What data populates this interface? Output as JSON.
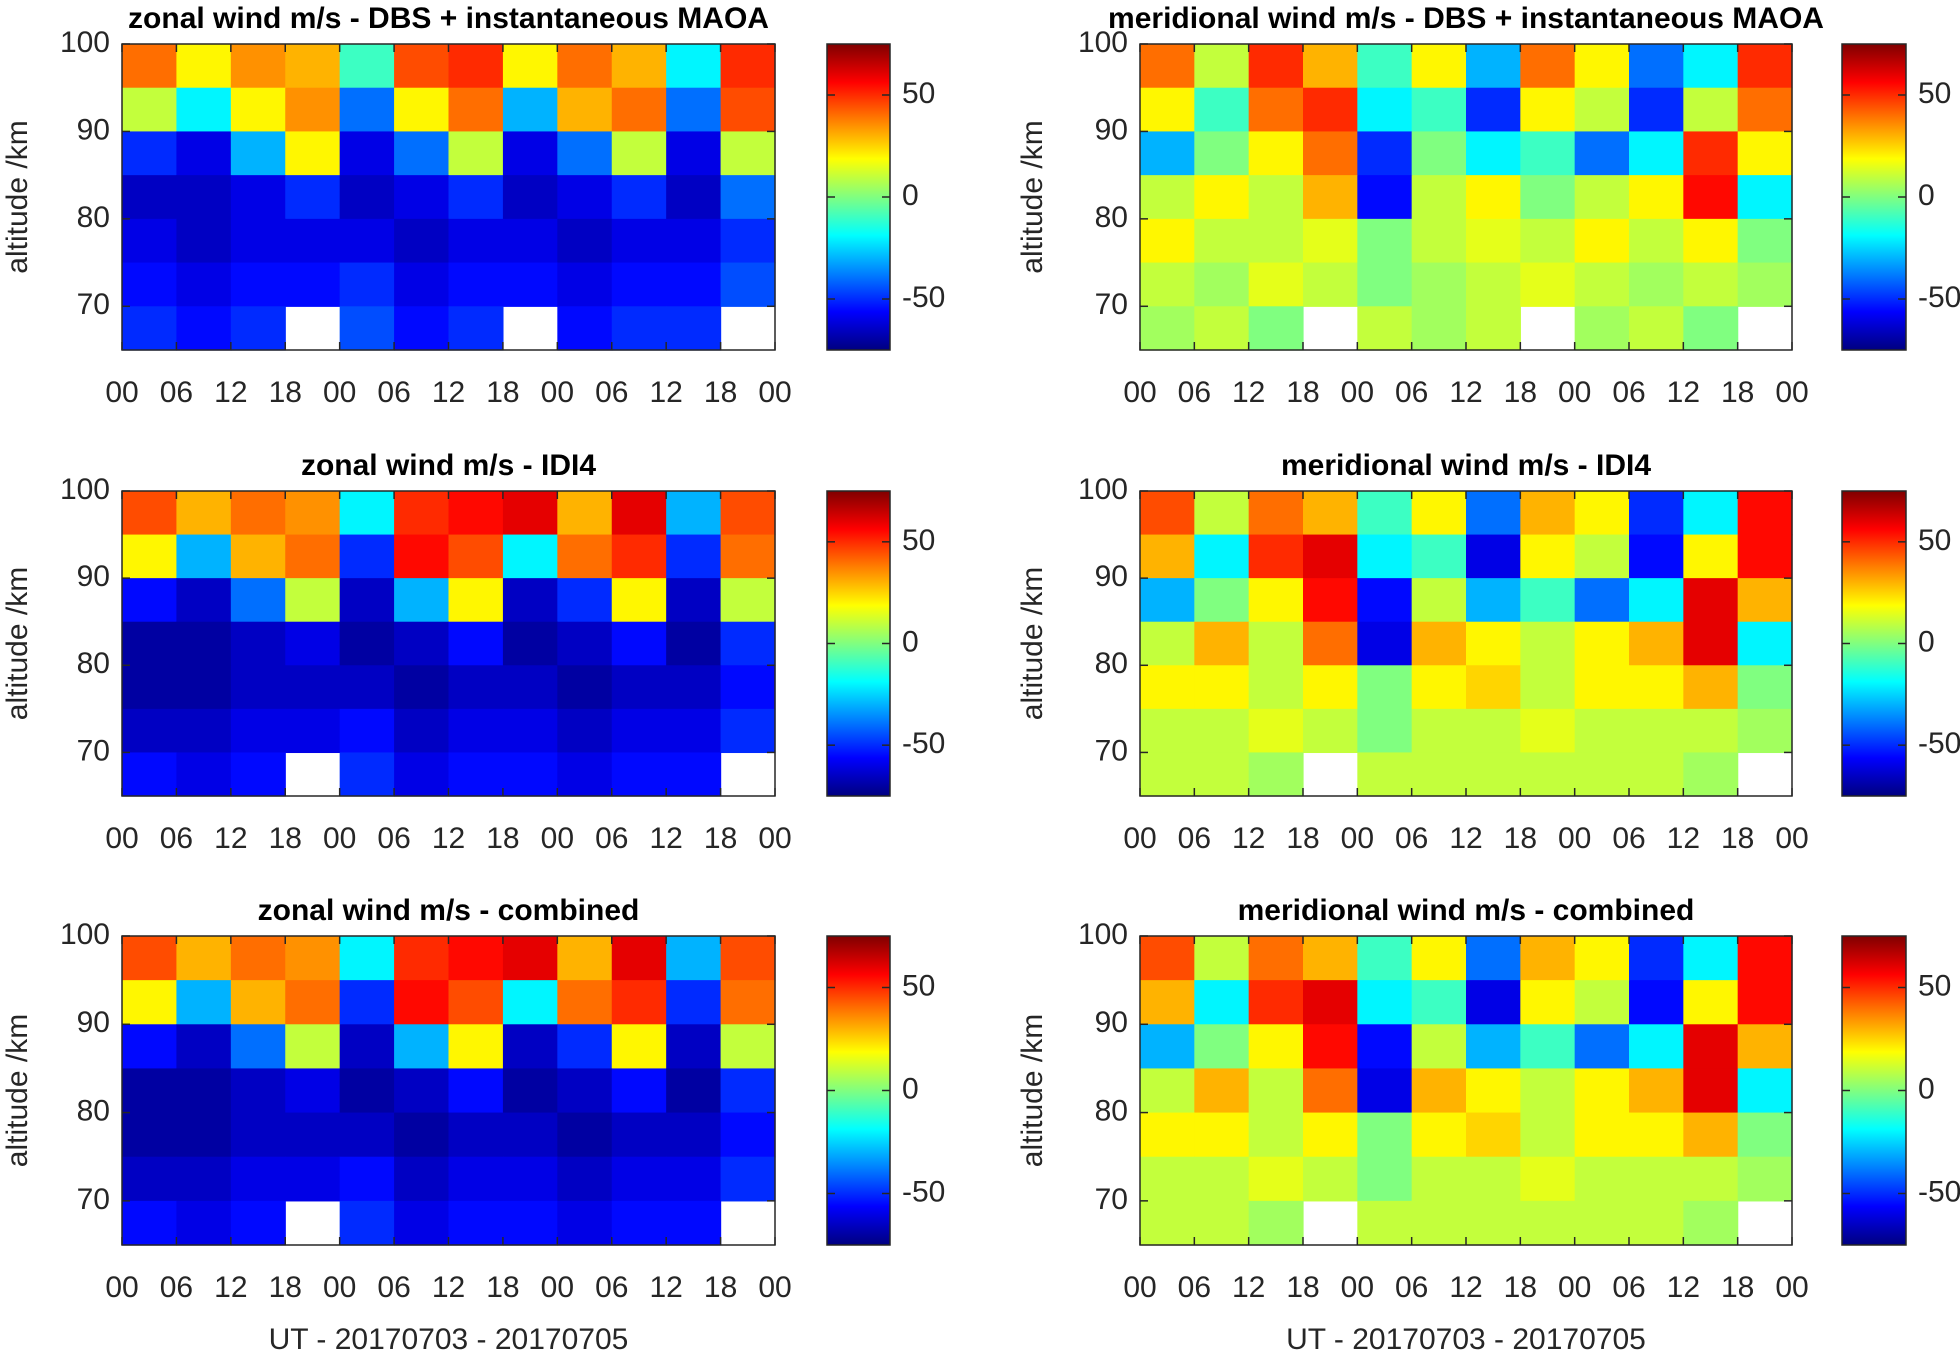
{
  "chart_data": [
    {
      "type": "heatmap",
      "title": "zonal wind m/s - DBS + instantaneous MAOA",
      "ylabel": "altitude /km",
      "xlim": [
        0,
        72
      ],
      "xticks": [
        {
          "value": 0,
          "label": "00"
        },
        {
          "value": 6,
          "label": "06"
        },
        12,
        18,
        {
          "value": 24,
          "label": "00"
        },
        {
          "value": 30,
          "label": "06"
        },
        {
          "value": 36,
          "label": "12"
        },
        {
          "value": 42,
          "label": "18"
        },
        {
          "value": 48,
          "label": "00"
        },
        {
          "value": 54,
          "label": "06"
        },
        {
          "value": 60,
          "label": "12"
        },
        {
          "value": 66,
          "label": "18"
        },
        {
          "value": 72,
          "label": "00"
        }
      ],
      "ylim": [
        65,
        100
      ],
      "yticks": [
        70,
        80,
        90,
        100
      ],
      "clim": [
        -75,
        75
      ],
      "cticks": [
        -50,
        0,
        50
      ],
      "colormap": "jet",
      "z": [
        [
          40,
          20,
          35,
          30,
          -10,
          45,
          50,
          20,
          40,
          30,
          -20,
          50
        ],
        [
          10,
          -20,
          20,
          35,
          -40,
          20,
          40,
          -30,
          30,
          40,
          -40,
          45
        ],
        [
          -50,
          -60,
          -30,
          20,
          -60,
          -40,
          10,
          -60,
          -40,
          10,
          -60,
          10
        ],
        [
          -65,
          -65,
          -60,
          -50,
          -65,
          -60,
          -50,
          -65,
          -60,
          -50,
          -65,
          -40
        ],
        [
          -60,
          -65,
          -60,
          -60,
          -60,
          -65,
          -60,
          -60,
          -65,
          -60,
          -60,
          -50
        ],
        [
          -55,
          -60,
          -55,
          -55,
          -50,
          -60,
          -55,
          -55,
          -60,
          -55,
          -55,
          -45
        ],
        [
          -50,
          -55,
          -50,
          null,
          -45,
          -55,
          -50,
          null,
          -55,
          -50,
          -50,
          null
        ]
      ]
    },
    {
      "type": "heatmap",
      "title": "meridional wind m/s - DBS + instantaneous MAOA",
      "ylabel": "altitude /km",
      "xlim": [
        0,
        72
      ],
      "xticks": [
        {
          "value": 0,
          "label": "00"
        },
        {
          "value": 6,
          "label": "06"
        },
        12,
        18,
        {
          "value": 24,
          "label": "00"
        },
        {
          "value": 30,
          "label": "06"
        },
        {
          "value": 36,
          "label": "12"
        },
        {
          "value": 42,
          "label": "18"
        },
        {
          "value": 48,
          "label": "00"
        },
        {
          "value": 54,
          "label": "06"
        },
        {
          "value": 60,
          "label": "12"
        },
        {
          "value": 66,
          "label": "18"
        },
        {
          "value": 72,
          "label": "00"
        }
      ],
      "ylim": [
        65,
        100
      ],
      "yticks": [
        70,
        80,
        90,
        100
      ],
      "clim": [
        -75,
        75
      ],
      "cticks": [
        -50,
        0,
        50
      ],
      "colormap": "jet",
      "z": [
        [
          40,
          10,
          50,
          30,
          -10,
          20,
          -30,
          40,
          20,
          -40,
          -20,
          50
        ],
        [
          20,
          -10,
          40,
          50,
          -20,
          -10,
          -50,
          20,
          10,
          -50,
          10,
          40
        ],
        [
          -30,
          0,
          20,
          40,
          -50,
          0,
          -20,
          -10,
          -40,
          -20,
          50,
          20
        ],
        [
          10,
          20,
          10,
          30,
          -55,
          10,
          20,
          0,
          10,
          20,
          55,
          -20
        ],
        [
          20,
          10,
          10,
          15,
          0,
          10,
          15,
          10,
          20,
          10,
          20,
          0
        ],
        [
          10,
          5,
          15,
          10,
          0,
          5,
          10,
          15,
          10,
          5,
          10,
          5
        ],
        [
          5,
          10,
          0,
          null,
          10,
          5,
          10,
          null,
          5,
          10,
          0,
          null
        ]
      ]
    },
    {
      "type": "heatmap",
      "title": "zonal wind m/s - IDI4",
      "ylabel": "altitude /km",
      "xlim": [
        0,
        72
      ],
      "xticks": [
        {
          "value": 0,
          "label": "00"
        },
        {
          "value": 6,
          "label": "06"
        },
        12,
        18,
        {
          "value": 24,
          "label": "00"
        },
        {
          "value": 30,
          "label": "06"
        },
        {
          "value": 36,
          "label": "12"
        },
        {
          "value": 42,
          "label": "18"
        },
        {
          "value": 48,
          "label": "00"
        },
        {
          "value": 54,
          "label": "06"
        },
        {
          "value": 60,
          "label": "12"
        },
        {
          "value": 66,
          "label": "18"
        },
        {
          "value": 72,
          "label": "00"
        }
      ],
      "ylim": [
        65,
        100
      ],
      "yticks": [
        70,
        80,
        90,
        100
      ],
      "clim": [
        -75,
        75
      ],
      "cticks": [
        -50,
        0,
        50
      ],
      "colormap": "jet",
      "z": [
        [
          45,
          30,
          40,
          35,
          -20,
          50,
          55,
          60,
          30,
          60,
          -30,
          45
        ],
        [
          20,
          -30,
          30,
          40,
          -50,
          55,
          45,
          -20,
          40,
          50,
          -50,
          40
        ],
        [
          -55,
          -65,
          -40,
          10,
          -65,
          -30,
          20,
          -65,
          -50,
          20,
          -65,
          10
        ],
        [
          -70,
          -70,
          -65,
          -60,
          -70,
          -65,
          -55,
          -70,
          -65,
          -55,
          -70,
          -50
        ],
        [
          -70,
          -70,
          -65,
          -65,
          -65,
          -70,
          -65,
          -65,
          -70,
          -65,
          -65,
          -55
        ],
        [
          -65,
          -65,
          -60,
          -60,
          -55,
          -65,
          -60,
          -60,
          -65,
          -60,
          -60,
          -50
        ],
        [
          -55,
          -60,
          -55,
          null,
          -50,
          -60,
          -55,
          -55,
          -60,
          -55,
          -55,
          null
        ]
      ]
    },
    {
      "type": "heatmap",
      "title": "meridional wind m/s - IDI4",
      "ylabel": "altitude /km",
      "xlim": [
        0,
        72
      ],
      "xticks": [
        {
          "value": 0,
          "label": "00"
        },
        {
          "value": 6,
          "label": "06"
        },
        12,
        18,
        {
          "value": 24,
          "label": "00"
        },
        {
          "value": 30,
          "label": "06"
        },
        {
          "value": 36,
          "label": "12"
        },
        {
          "value": 42,
          "label": "18"
        },
        {
          "value": 48,
          "label": "00"
        },
        {
          "value": 54,
          "label": "06"
        },
        {
          "value": 60,
          "label": "12"
        },
        {
          "value": 66,
          "label": "18"
        },
        {
          "value": 72,
          "label": "00"
        }
      ],
      "ylim": [
        65,
        100
      ],
      "yticks": [
        70,
        80,
        90,
        100
      ],
      "clim": [
        -75,
        75
      ],
      "cticks": [
        -50,
        0,
        50
      ],
      "colormap": "jet",
      "z": [
        [
          45,
          10,
          40,
          30,
          -10,
          20,
          -40,
          30,
          20,
          -50,
          -20,
          55
        ],
        [
          30,
          -20,
          50,
          60,
          -20,
          -10,
          -60,
          20,
          10,
          -55,
          20,
          55
        ],
        [
          -30,
          0,
          20,
          55,
          -55,
          10,
          -30,
          -10,
          -40,
          -20,
          60,
          30
        ],
        [
          10,
          30,
          10,
          40,
          -60,
          30,
          20,
          10,
          20,
          30,
          60,
          -20
        ],
        [
          20,
          20,
          10,
          20,
          0,
          20,
          25,
          10,
          20,
          20,
          30,
          0
        ],
        [
          10,
          10,
          15,
          10,
          0,
          10,
          10,
          15,
          10,
          10,
          10,
          5
        ],
        [
          10,
          10,
          5,
          null,
          10,
          10,
          10,
          10,
          10,
          10,
          5,
          null
        ]
      ]
    },
    {
      "type": "heatmap",
      "title": "zonal wind m/s - combined",
      "ylabel": "altitude /km",
      "xlabel": "UT - 20170703 - 20170705",
      "xlim": [
        0,
        72
      ],
      "xticks": [
        {
          "value": 0,
          "label": "00"
        },
        {
          "value": 6,
          "label": "06"
        },
        12,
        18,
        {
          "value": 24,
          "label": "00"
        },
        {
          "value": 30,
          "label": "06"
        },
        {
          "value": 36,
          "label": "12"
        },
        {
          "value": 42,
          "label": "18"
        },
        {
          "value": 48,
          "label": "00"
        },
        {
          "value": 54,
          "label": "06"
        },
        {
          "value": 60,
          "label": "12"
        },
        {
          "value": 66,
          "label": "18"
        },
        {
          "value": 72,
          "label": "00"
        }
      ],
      "ylim": [
        65,
        100
      ],
      "yticks": [
        70,
        80,
        90,
        100
      ],
      "clim": [
        -75,
        75
      ],
      "cticks": [
        -50,
        0,
        50
      ],
      "colormap": "jet",
      "z": [
        [
          45,
          30,
          40,
          35,
          -20,
          50,
          55,
          60,
          30,
          60,
          -30,
          45
        ],
        [
          20,
          -30,
          30,
          40,
          -50,
          55,
          45,
          -20,
          40,
          50,
          -50,
          40
        ],
        [
          -55,
          -65,
          -40,
          10,
          -65,
          -30,
          20,
          -65,
          -50,
          20,
          -65,
          10
        ],
        [
          -70,
          -70,
          -65,
          -60,
          -70,
          -65,
          -55,
          -70,
          -65,
          -55,
          -70,
          -50
        ],
        [
          -70,
          -70,
          -65,
          -65,
          -65,
          -70,
          -65,
          -65,
          -70,
          -65,
          -65,
          -55
        ],
        [
          -65,
          -65,
          -60,
          -60,
          -55,
          -65,
          -60,
          -60,
          -65,
          -60,
          -60,
          -50
        ],
        [
          -55,
          -60,
          -55,
          null,
          -50,
          -60,
          -55,
          -55,
          -60,
          -55,
          -55,
          null
        ]
      ]
    },
    {
      "type": "heatmap",
      "title": "meridional wind m/s - combined",
      "ylabel": "altitude /km",
      "xlabel": "UT - 20170703 - 20170705",
      "xlim": [
        0,
        72
      ],
      "xticks": [
        {
          "value": 0,
          "label": "00"
        },
        {
          "value": 6,
          "label": "06"
        },
        12,
        18,
        {
          "value": 24,
          "label": "00"
        },
        {
          "value": 30,
          "label": "06"
        },
        {
          "value": 36,
          "label": "12"
        },
        {
          "value": 42,
          "label": "18"
        },
        {
          "value": 48,
          "label": "00"
        },
        {
          "value": 54,
          "label": "06"
        },
        {
          "value": 60,
          "label": "12"
        },
        {
          "value": 66,
          "label": "18"
        },
        {
          "value": 72,
          "label": "00"
        }
      ],
      "ylim": [
        65,
        100
      ],
      "yticks": [
        70,
        80,
        90,
        100
      ],
      "clim": [
        -75,
        75
      ],
      "cticks": [
        -50,
        0,
        50
      ],
      "colormap": "jet",
      "z": [
        [
          45,
          10,
          40,
          30,
          -10,
          20,
          -40,
          30,
          20,
          -50,
          -20,
          55
        ],
        [
          30,
          -20,
          50,
          60,
          -20,
          -10,
          -60,
          20,
          10,
          -55,
          20,
          55
        ],
        [
          -30,
          0,
          20,
          55,
          -55,
          10,
          -30,
          -10,
          -40,
          -20,
          60,
          30
        ],
        [
          10,
          30,
          10,
          40,
          -60,
          30,
          20,
          10,
          20,
          30,
          60,
          -20
        ],
        [
          20,
          20,
          10,
          20,
          0,
          20,
          25,
          10,
          20,
          20,
          30,
          0
        ],
        [
          10,
          10,
          15,
          10,
          0,
          10,
          10,
          15,
          10,
          10,
          10,
          5
        ],
        [
          10,
          10,
          5,
          null,
          10,
          10,
          10,
          10,
          10,
          10,
          5,
          null
        ]
      ]
    }
  ]
}
